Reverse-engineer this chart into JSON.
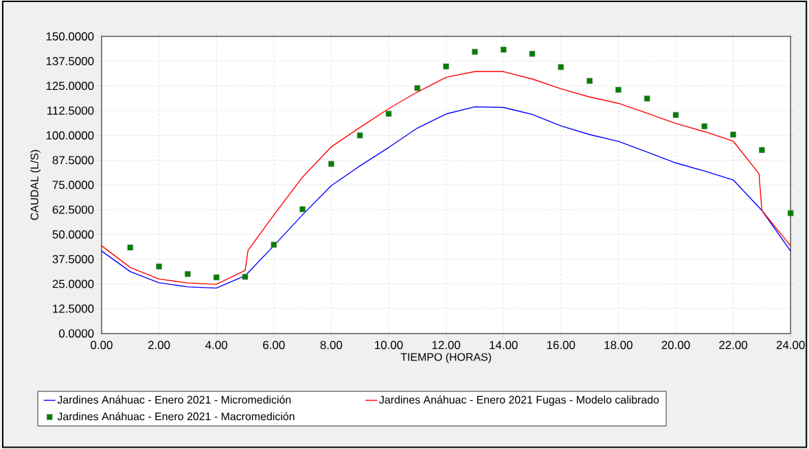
{
  "chart_data": {
    "type": "line",
    "xlabel": "TIEMPO (HORAS)",
    "ylabel": "CAUDAL (L/S)",
    "xlim": [
      0,
      24
    ],
    "ylim": [
      0,
      150
    ],
    "xticks": [
      {
        "value": 0,
        "label": "0.00"
      },
      {
        "value": 2,
        "label": "2.00"
      },
      {
        "value": 4,
        "label": "4.00"
      },
      {
        "value": 6,
        "label": "6.00"
      },
      {
        "value": 8,
        "label": "8.00"
      },
      {
        "value": 10,
        "label": "10.00"
      },
      {
        "value": 12,
        "label": "12.00"
      },
      {
        "value": 14,
        "label": "14.00"
      },
      {
        "value": 16,
        "label": "16.00"
      },
      {
        "value": 18,
        "label": "18.00"
      },
      {
        "value": 20,
        "label": "20.00"
      },
      {
        "value": 22,
        "label": "22.00"
      },
      {
        "value": 24,
        "label": "24.00"
      }
    ],
    "yticks": [
      {
        "value": 0,
        "label": "0.0000"
      },
      {
        "value": 12.5,
        "label": "12.5000"
      },
      {
        "value": 25,
        "label": "25.0000"
      },
      {
        "value": 37.5,
        "label": "37.5000"
      },
      {
        "value": 50,
        "label": "50.0000"
      },
      {
        "value": 62.5,
        "label": "62.5000"
      },
      {
        "value": 75,
        "label": "75.0000"
      },
      {
        "value": 87.5,
        "label": "87.5000"
      },
      {
        "value": 100,
        "label": "100.0000"
      },
      {
        "value": 112.5,
        "label": "112.5000"
      },
      {
        "value": 125,
        "label": "125.0000"
      },
      {
        "value": 137.5,
        "label": "137.5000"
      },
      {
        "value": 150,
        "label": "150.0000"
      }
    ],
    "grid": true,
    "legend": "bottom",
    "line_style": "solid",
    "series": [
      {
        "name": "Jardines Anáhuac - Enero 2021 - Micromedición",
        "color": "#0000ff",
        "x": [
          0,
          1,
          2,
          3,
          4,
          5,
          6,
          7,
          8,
          9,
          10,
          11,
          12,
          13,
          14,
          15,
          16,
          17,
          18,
          19,
          20,
          21,
          22,
          23,
          24
        ],
        "values": [
          41.6,
          31.2,
          25.6,
          23.5,
          22.9,
          29.1,
          44.3,
          59.9,
          74.6,
          84.6,
          93.9,
          103.7,
          110.8,
          114.4,
          114.1,
          110.6,
          104.8,
          100.4,
          97.0,
          91.6,
          86.1,
          82.0,
          77.5,
          62.1,
          41.6
        ]
      },
      {
        "name": "Jardines Anáhuac - Enero 2021 Fugas - Modelo calibrado",
        "color": "#ff0000",
        "x": [
          0,
          1,
          2,
          3,
          4,
          5,
          5.1,
          6,
          7,
          8,
          9,
          10,
          11,
          12,
          13,
          14,
          15,
          16,
          17,
          18,
          19,
          20,
          21,
          22,
          22.9,
          23,
          24
        ],
        "values": [
          44.3,
          33.3,
          27.5,
          25.5,
          24.8,
          31.8,
          41.9,
          59.8,
          78.9,
          94.2,
          104.0,
          113.5,
          121.9,
          129.3,
          132.2,
          132.2,
          128.5,
          123.5,
          119.4,
          116.2,
          111.2,
          106.0,
          101.9,
          97.1,
          80.6,
          62.1,
          44.2
        ]
      },
      {
        "name": "Jardines Anáhuac - Enero 2021 - Macromedición",
        "type": "scatter",
        "marker": "square",
        "color": "#008000",
        "x": [
          1,
          2,
          3,
          4,
          5,
          6,
          7,
          8,
          9,
          10,
          11,
          12,
          13,
          14,
          15,
          16,
          17,
          18,
          19,
          20,
          21,
          22,
          23,
          24
        ],
        "values": [
          43.4,
          33.8,
          30.0,
          28.3,
          28.6,
          44.8,
          62.7,
          85.6,
          100.0,
          110.9,
          123.9,
          134.8,
          142.2,
          143.3,
          141.2,
          134.5,
          127.5,
          123.0,
          118.6,
          110.3,
          104.6,
          100.4,
          92.6,
          60.7
        ]
      }
    ]
  }
}
